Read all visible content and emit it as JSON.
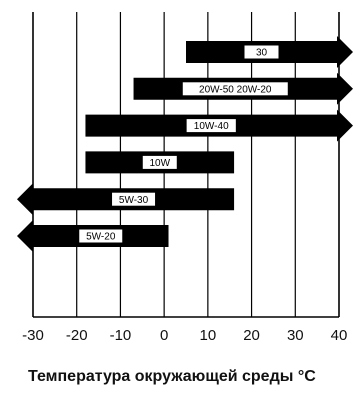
{
  "chart_data": {
    "type": "bar",
    "orientation": "horizontal-range",
    "xlim": [
      -30,
      40
    ],
    "xticks": [
      -30,
      -20,
      -10,
      0,
      10,
      20,
      30,
      40
    ],
    "grid": true,
    "caption": "Температура окружающей среды °C",
    "bars": [
      {
        "label": "30",
        "from": 5,
        "to": 40,
        "open_left": false,
        "open_right": true
      },
      {
        "label": "20W-50   20W-20",
        "from": -7,
        "to": 40,
        "open_left": false,
        "open_right": true
      },
      {
        "label": "10W-40",
        "from": -18,
        "to": 40,
        "open_left": false,
        "open_right": true
      },
      {
        "label": "10W",
        "from": -18,
        "to": 16,
        "open_left": false,
        "open_right": false
      },
      {
        "label": "5W-30",
        "from": -30,
        "to": 16,
        "open_left": true,
        "open_right": false
      },
      {
        "label": "5W-20",
        "from": -30,
        "to": 1,
        "open_left": true,
        "open_right": false
      }
    ],
    "colors": {
      "bar": "#000000",
      "label_box": "#ffffff",
      "grid": "#000000"
    }
  }
}
